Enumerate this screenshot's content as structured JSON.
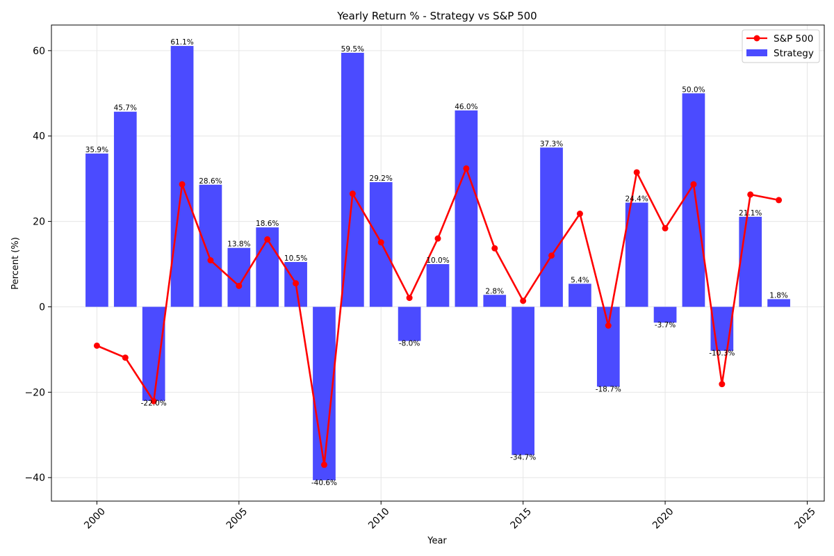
{
  "chart_data": {
    "type": "bar",
    "title": "Yearly Return % - Strategy vs S&P 500",
    "xlabel": "Year",
    "ylabel": "Percent (%)",
    "xlim": [
      1998.4,
      2025.6
    ],
    "ylim": [
      -45.5,
      66
    ],
    "xticks": [
      2000,
      2005,
      2010,
      2015,
      2020,
      2025
    ],
    "yticks": [
      -40,
      -20,
      0,
      20,
      40,
      60
    ],
    "grid": true,
    "legend_position": "top-right",
    "x": [
      2000,
      2001,
      2002,
      2003,
      2004,
      2005,
      2006,
      2007,
      2008,
      2009,
      2010,
      2011,
      2012,
      2013,
      2014,
      2015,
      2016,
      2017,
      2018,
      2019,
      2020,
      2021,
      2022,
      2023,
      2024
    ],
    "series": [
      {
        "name": "Strategy",
        "kind": "bar",
        "color": "#4b4bff",
        "values": [
          35.9,
          45.7,
          -22.0,
          61.1,
          28.6,
          13.8,
          18.6,
          10.5,
          -40.6,
          59.5,
          29.2,
          -8.0,
          10.0,
          46.0,
          2.8,
          -34.7,
          37.3,
          5.4,
          -18.7,
          24.4,
          -3.7,
          50.0,
          -10.3,
          21.1,
          1.8
        ],
        "labels": [
          "35.9%",
          "45.7%",
          "-22.0%",
          "61.1%",
          "28.6%",
          "13.8%",
          "18.6%",
          "10.5%",
          "-40.6%",
          "59.5%",
          "29.2%",
          "-8.0%",
          "10.0%",
          "46.0%",
          "2.8%",
          "-34.7%",
          "37.3%",
          "5.4%",
          "-18.7%",
          "24.4%",
          "-3.7%",
          "50.0%",
          "-10.3%",
          "21.1%",
          "1.8%"
        ]
      },
      {
        "name": "S&P 500",
        "kind": "line",
        "color": "#ff0000",
        "values": [
          -9.1,
          -11.9,
          -22.1,
          28.7,
          10.9,
          4.9,
          15.8,
          5.5,
          -37.0,
          26.5,
          15.1,
          2.1,
          16.0,
          32.4,
          13.7,
          1.4,
          12.0,
          21.8,
          -4.4,
          31.5,
          18.4,
          28.7,
          -18.1,
          26.3,
          25.0
        ]
      }
    ]
  }
}
